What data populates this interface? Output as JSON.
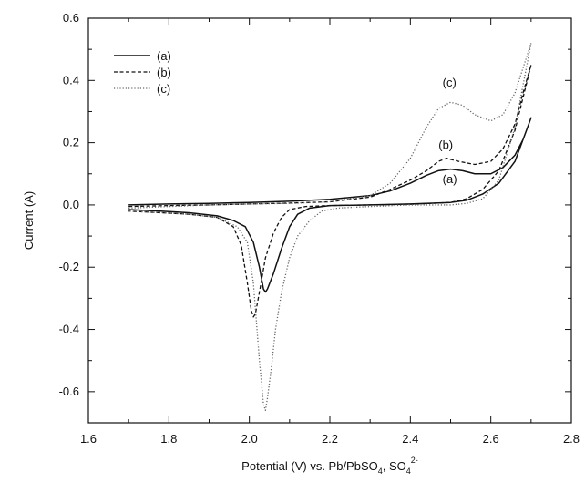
{
  "chart_data": {
    "type": "line",
    "title": "",
    "xlabel": "Potential (V) vs. Pb/PbSO",
    "xlabel_sub1": "4",
    "xlabel_mid": ", SO",
    "xlabel_sub2": "4",
    "xlabel_sup2": "2-",
    "ylabel": "Current (A)",
    "xlim": [
      1.6,
      2.8
    ],
    "ylim": [
      -0.7,
      0.6
    ],
    "xticks": [
      1.6,
      1.8,
      2.0,
      2.2,
      2.4,
      2.6,
      2.8
    ],
    "yticks": [
      -0.6,
      -0.4,
      -0.2,
      0.0,
      0.2,
      0.4,
      0.6
    ],
    "xtick_labels": [
      "1.6",
      "1.8",
      "2.0",
      "2.2",
      "2.4",
      "2.6",
      "2.8"
    ],
    "ytick_labels": [
      "-0.6",
      "-0.4",
      "-0.2",
      "0.0",
      "0.2",
      "0.4",
      "0.6"
    ],
    "grid": false,
    "legend_position": "top-left",
    "series": [
      {
        "name": "(a)",
        "style": "solid",
        "color": "#111111",
        "anodic": [
          [
            1.7,
            0.0
          ],
          [
            1.8,
            0.003
          ],
          [
            1.9,
            0.005
          ],
          [
            2.0,
            0.008
          ],
          [
            2.1,
            0.012
          ],
          [
            2.2,
            0.018
          ],
          [
            2.3,
            0.03
          ],
          [
            2.35,
            0.045
          ],
          [
            2.4,
            0.07
          ],
          [
            2.44,
            0.095
          ],
          [
            2.47,
            0.11
          ],
          [
            2.5,
            0.115
          ],
          [
            2.53,
            0.11
          ],
          [
            2.56,
            0.1
          ],
          [
            2.6,
            0.1
          ],
          [
            2.63,
            0.12
          ],
          [
            2.66,
            0.16
          ],
          [
            2.68,
            0.21
          ],
          [
            2.7,
            0.28
          ]
        ],
        "cathodic": [
          [
            2.7,
            0.28
          ],
          [
            2.66,
            0.14
          ],
          [
            2.62,
            0.07
          ],
          [
            2.58,
            0.035
          ],
          [
            2.54,
            0.015
          ],
          [
            2.5,
            0.008
          ],
          [
            2.4,
            0.003
          ],
          [
            2.3,
            0.0
          ],
          [
            2.2,
            -0.002
          ],
          [
            2.15,
            -0.01
          ],
          [
            2.12,
            -0.03
          ],
          [
            2.1,
            -0.07
          ],
          [
            2.08,
            -0.14
          ],
          [
            2.06,
            -0.22
          ],
          [
            2.045,
            -0.27
          ],
          [
            2.04,
            -0.28
          ],
          [
            2.035,
            -0.27
          ],
          [
            2.025,
            -0.2
          ],
          [
            2.01,
            -0.12
          ],
          [
            1.99,
            -0.07
          ],
          [
            1.96,
            -0.05
          ],
          [
            1.92,
            -0.035
          ],
          [
            1.85,
            -0.025
          ],
          [
            1.78,
            -0.02
          ],
          [
            1.7,
            -0.015
          ]
        ]
      },
      {
        "name": "(b)",
        "style": "dashed",
        "color": "#111111",
        "anodic": [
          [
            1.7,
            -0.005
          ],
          [
            1.8,
            -0.002
          ],
          [
            1.9,
            0.0
          ],
          [
            2.0,
            0.003
          ],
          [
            2.1,
            0.006
          ],
          [
            2.2,
            0.01
          ],
          [
            2.3,
            0.025
          ],
          [
            2.35,
            0.05
          ],
          [
            2.4,
            0.08
          ],
          [
            2.44,
            0.11
          ],
          [
            2.47,
            0.14
          ],
          [
            2.49,
            0.15
          ],
          [
            2.52,
            0.14
          ],
          [
            2.56,
            0.13
          ],
          [
            2.6,
            0.14
          ],
          [
            2.63,
            0.18
          ],
          [
            2.66,
            0.26
          ],
          [
            2.68,
            0.36
          ],
          [
            2.7,
            0.45
          ]
        ],
        "cathodic": [
          [
            2.7,
            0.45
          ],
          [
            2.66,
            0.24
          ],
          [
            2.62,
            0.11
          ],
          [
            2.58,
            0.05
          ],
          [
            2.54,
            0.02
          ],
          [
            2.5,
            0.008
          ],
          [
            2.4,
            0.002
          ],
          [
            2.3,
            0.0
          ],
          [
            2.2,
            -0.002
          ],
          [
            2.14,
            -0.005
          ],
          [
            2.1,
            -0.015
          ],
          [
            2.08,
            -0.04
          ],
          [
            2.06,
            -0.09
          ],
          [
            2.04,
            -0.17
          ],
          [
            2.025,
            -0.28
          ],
          [
            2.015,
            -0.35
          ],
          [
            2.01,
            -0.36
          ],
          [
            2.005,
            -0.34
          ],
          [
            1.995,
            -0.25
          ],
          [
            1.98,
            -0.13
          ],
          [
            1.96,
            -0.07
          ],
          [
            1.92,
            -0.04
          ],
          [
            1.85,
            -0.03
          ],
          [
            1.78,
            -0.025
          ],
          [
            1.7,
            -0.02
          ]
        ]
      },
      {
        "name": "(c)",
        "style": "dotted",
        "color": "#666666",
        "anodic": [
          [
            1.7,
            -0.01
          ],
          [
            1.8,
            -0.005
          ],
          [
            1.9,
            0.0
          ],
          [
            2.0,
            0.003
          ],
          [
            2.1,
            0.005
          ],
          [
            2.2,
            0.01
          ],
          [
            2.3,
            0.03
          ],
          [
            2.35,
            0.07
          ],
          [
            2.4,
            0.15
          ],
          [
            2.44,
            0.25
          ],
          [
            2.47,
            0.31
          ],
          [
            2.5,
            0.33
          ],
          [
            2.53,
            0.32
          ],
          [
            2.56,
            0.29
          ],
          [
            2.6,
            0.27
          ],
          [
            2.63,
            0.29
          ],
          [
            2.66,
            0.36
          ],
          [
            2.68,
            0.44
          ],
          [
            2.7,
            0.52
          ]
        ],
        "cathodic": [
          [
            2.7,
            0.52
          ],
          [
            2.66,
            0.25
          ],
          [
            2.62,
            0.08
          ],
          [
            2.58,
            0.02
          ],
          [
            2.54,
            0.005
          ],
          [
            2.5,
            0.0
          ],
          [
            2.4,
            0.0
          ],
          [
            2.3,
            -0.005
          ],
          [
            2.22,
            -0.01
          ],
          [
            2.18,
            -0.02
          ],
          [
            2.15,
            -0.05
          ],
          [
            2.12,
            -0.1
          ],
          [
            2.1,
            -0.17
          ],
          [
            2.08,
            -0.28
          ],
          [
            2.065,
            -0.4
          ],
          [
            2.055,
            -0.52
          ],
          [
            2.045,
            -0.62
          ],
          [
            2.04,
            -0.66
          ],
          [
            2.035,
            -0.64
          ],
          [
            2.025,
            -0.5
          ],
          [
            2.01,
            -0.25
          ],
          [
            1.995,
            -0.12
          ],
          [
            1.97,
            -0.07
          ],
          [
            1.92,
            -0.04
          ],
          [
            1.85,
            -0.03
          ],
          [
            1.78,
            -0.025
          ],
          [
            1.7,
            -0.02
          ]
        ]
      }
    ],
    "annotations": [
      {
        "text": "(c)",
        "x": 2.48,
        "y": 0.38
      },
      {
        "text": "(b)",
        "x": 2.47,
        "y": 0.18
      },
      {
        "text": "(a)",
        "x": 2.48,
        "y": 0.07
      }
    ]
  }
}
